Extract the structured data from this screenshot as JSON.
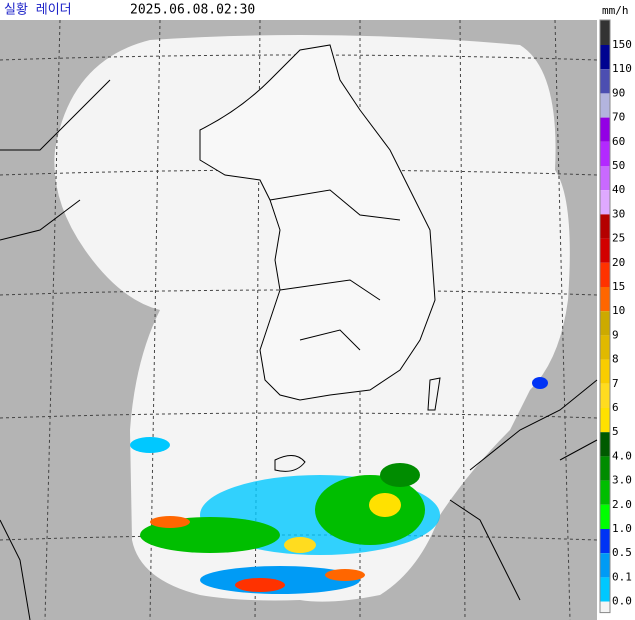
{
  "header": {
    "title": "실황 레이더",
    "timestamp": "2025.06.08.02:30"
  },
  "legend": {
    "unit": "mm/h",
    "top_color": "#333333",
    "bottom_color": "#ffffff",
    "levels": [
      {
        "label": "150",
        "color": "#000390"
      },
      {
        "label": "110",
        "color": "#4c4eb1"
      },
      {
        "label": "90",
        "color": "#b3b4de"
      },
      {
        "label": "70",
        "color": "#9300e4"
      },
      {
        "label": "60",
        "color": "#b329ff"
      },
      {
        "label": "50",
        "color": "#c969ff"
      },
      {
        "label": "40",
        "color": "#dfa9ff"
      },
      {
        "label": "30",
        "color": "#b40000"
      },
      {
        "label": "25",
        "color": "#d20000"
      },
      {
        "label": "20",
        "color": "#ff3200"
      },
      {
        "label": "15",
        "color": "#ff6600"
      },
      {
        "label": "10",
        "color": "#ccaa00"
      },
      {
        "label": "9",
        "color": "#e0b900"
      },
      {
        "label": "8",
        "color": "#f9cd00"
      },
      {
        "label": "7",
        "color": "#ffdc1f"
      },
      {
        "label": "6",
        "color": "#ffe100"
      },
      {
        "label": "5",
        "color": "#005a00"
      },
      {
        "label": "4.0",
        "color": "#008c00"
      },
      {
        "label": "3.0",
        "color": "#00be00"
      },
      {
        "label": "2.0",
        "color": "#00ff00"
      },
      {
        "label": "1.0",
        "color": "#0033f5"
      },
      {
        "label": "0.5",
        "color": "#009bf5"
      },
      {
        "label": "0.1",
        "color": "#00c8ff"
      },
      {
        "label": "0.0",
        "color": "#f4f4f4"
      }
    ]
  }
}
